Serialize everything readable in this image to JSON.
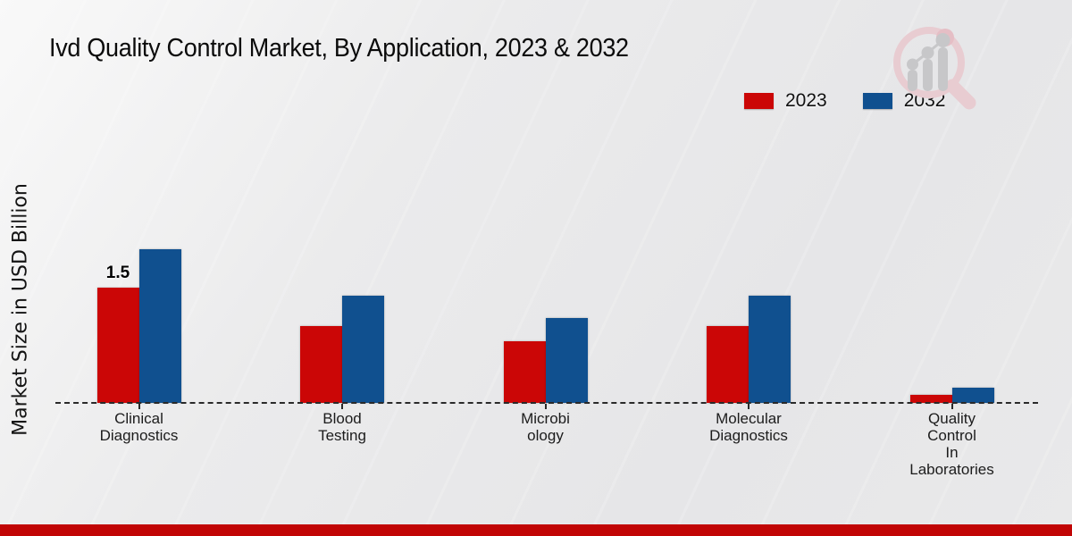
{
  "title": "Ivd Quality Control Market, By Application, 2023 & 2032",
  "y_axis_label": "Market Size in USD Billion",
  "legend": {
    "items": [
      {
        "label": "2023",
        "color": "#cb0606"
      },
      {
        "label": "2032",
        "color": "#10508f"
      }
    ]
  },
  "chart_data": {
    "type": "bar",
    "title": "Ivd Quality Control Market, By Application, 2023 & 2032",
    "ylabel": "Market Size in USD Billion",
    "xlabel": "",
    "categories": [
      "Clinical\nDiagnostics",
      "Blood\nTesting",
      "Microbi\nology",
      "Molecular\nDiagnostics",
      "Quality\nControl\nIn\nLaboratories"
    ],
    "series": [
      {
        "name": "2023",
        "color": "#cb0606",
        "values": [
          1.5,
          1.0,
          0.8,
          1.0,
          0.1
        ]
      },
      {
        "name": "2032",
        "color": "#10508f",
        "values": [
          2.0,
          1.4,
          1.1,
          1.4,
          0.2
        ]
      }
    ],
    "ylim": [
      0,
      2.2
    ],
    "grid": false,
    "baseline_style": "dashed",
    "legend_position": "top-right",
    "annotations": [
      {
        "category_index": 0,
        "series_index": 0,
        "text": "1.5"
      }
    ]
  },
  "icons": {
    "logo": "magnifier-bar-chart-watermark"
  },
  "footer": {
    "bar_color": "#c10505"
  }
}
